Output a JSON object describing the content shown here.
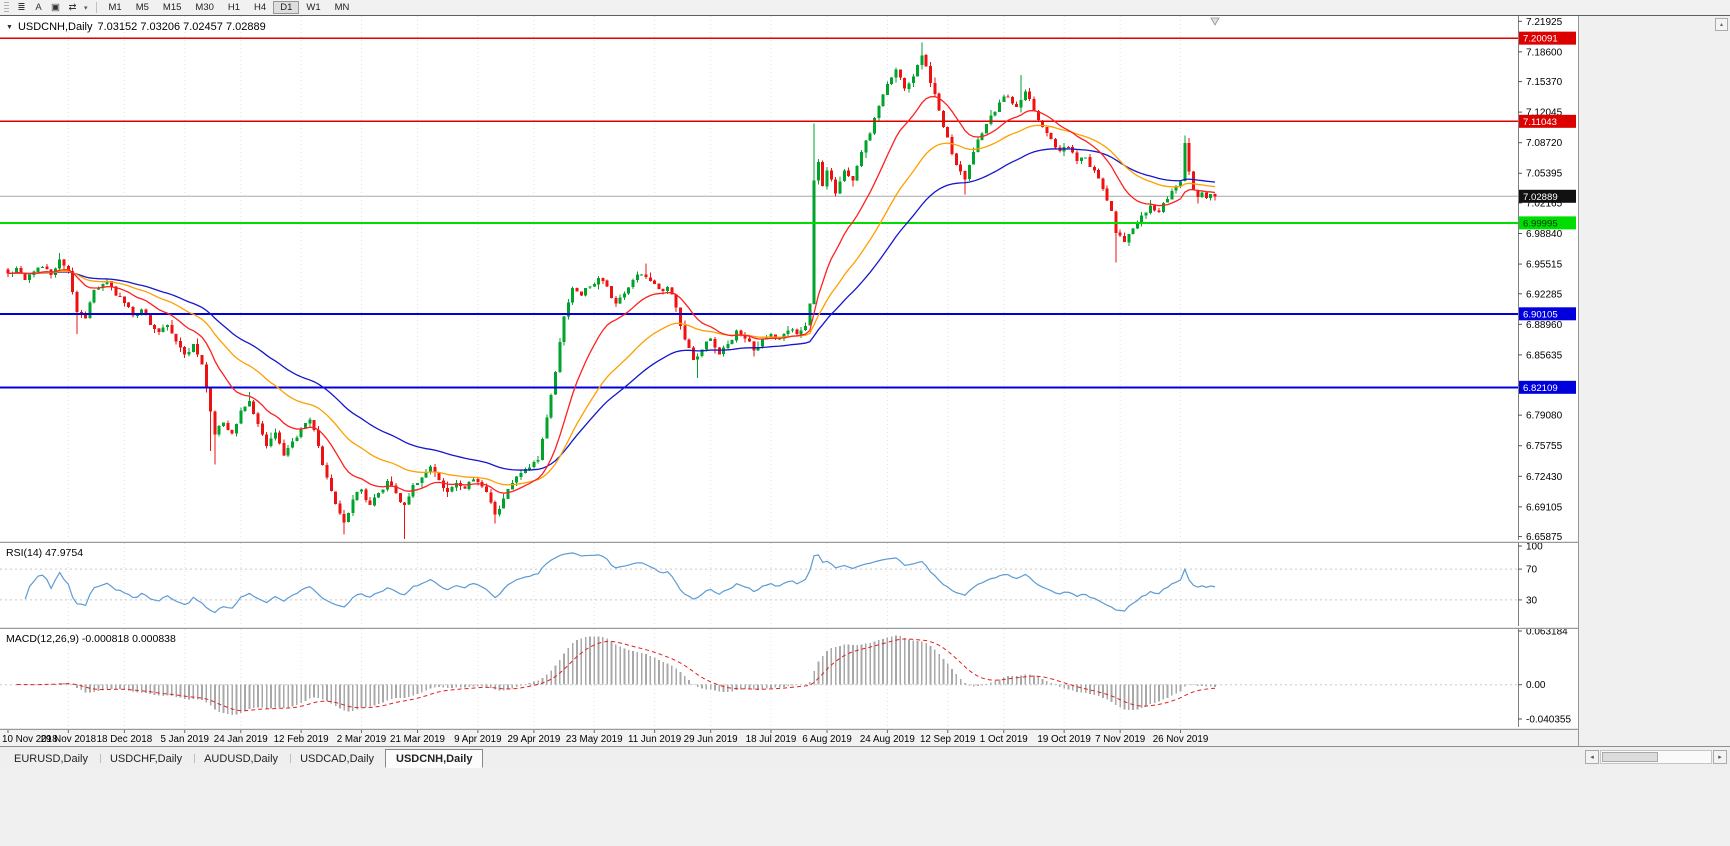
{
  "toolbar": {
    "tools": [
      {
        "name": "chart-objects-list-button",
        "glyph": "≣"
      },
      {
        "name": "text-label-tool-button",
        "glyph": "A"
      },
      {
        "name": "template-tool-button",
        "glyph": "▣"
      },
      {
        "name": "arrow-tools-button",
        "glyph": "⇄"
      }
    ],
    "arrows_dropdown_glyph": "▾",
    "timeframes": [
      "M1",
      "M5",
      "M15",
      "M30",
      "H1",
      "H4",
      "D1",
      "W1",
      "MN"
    ],
    "active_timeframe": "D1"
  },
  "chart": {
    "title_marker_glyph": "▼",
    "title": "USDCNH,Daily",
    "ohlc_text": "7.03152 7.03206 7.02457 7.02889"
  },
  "chart_data": {
    "type": "candlestick",
    "title": "USDCNH,Daily",
    "ohlc_display": {
      "open": 7.03152,
      "high": 7.03206,
      "low": 7.02457,
      "close": 7.02889
    },
    "ylim": [
      6.655,
      7.225
    ],
    "y_axis_labels": [
      "7.21925",
      "7.18600",
      "7.15370",
      "7.12045",
      "7.08720",
      "7.05395",
      "7.02165",
      "6.98840",
      "6.95515",
      "6.92285",
      "6.88960",
      "6.85635",
      "6.82310",
      "6.79080",
      "6.75755",
      "6.72430",
      "6.69105",
      "6.65875"
    ],
    "x_labels": [
      "10 Nov 2018",
      "29 Nov 2018",
      "18 Dec 2018",
      "5 Jan 2019",
      "24 Jan 2019",
      "12 Feb 2019",
      "2 Mar 2019",
      "21 Mar 2019",
      "9 Apr 2019",
      "29 Apr 2019",
      "23 May 2019",
      "11 Jun 2019",
      "29 Jun 2019",
      "18 Jul 2019",
      "6 Aug 2019",
      "24 Aug 2019",
      "12 Sep 2019",
      "1 Oct 2019",
      "19 Oct 2019",
      "7 Nov 2019",
      "26 Nov 2019"
    ],
    "candle_count": 281,
    "colors": {
      "up": "#00a32b",
      "down": "#ee1111"
    },
    "close_waypoints": [
      [
        0,
        6.945
      ],
      [
        2,
        6.951
      ],
      [
        4,
        6.938
      ],
      [
        6,
        6.947
      ],
      [
        8,
        6.952
      ],
      [
        10,
        6.943
      ],
      [
        12,
        6.96
      ],
      [
        14,
        6.948
      ],
      [
        16,
        6.903
      ],
      [
        18,
        6.896
      ],
      [
        20,
        6.927
      ],
      [
        23,
        6.937
      ],
      [
        25,
        6.921
      ],
      [
        27,
        6.913
      ],
      [
        29,
        6.899
      ],
      [
        31,
        6.906
      ],
      [
        33,
        6.889
      ],
      [
        35,
        6.881
      ],
      [
        37,
        6.889
      ],
      [
        39,
        6.871
      ],
      [
        41,
        6.857
      ],
      [
        43,
        6.868
      ],
      [
        45,
        6.846
      ],
      [
        47,
        6.795
      ],
      [
        48,
        6.77
      ],
      [
        50,
        6.783
      ],
      [
        52,
        6.771
      ],
      [
        54,
        6.796
      ],
      [
        56,
        6.806
      ],
      [
        58,
        6.781
      ],
      [
        60,
        6.757
      ],
      [
        62,
        6.772
      ],
      [
        64,
        6.747
      ],
      [
        66,
        6.762
      ],
      [
        68,
        6.776
      ],
      [
        70,
        6.786
      ],
      [
        72,
        6.757
      ],
      [
        74,
        6.723
      ],
      [
        76,
        6.694
      ],
      [
        78,
        6.674
      ],
      [
        80,
        6.699
      ],
      [
        82,
        6.71
      ],
      [
        84,
        6.693
      ],
      [
        86,
        6.706
      ],
      [
        88,
        6.719
      ],
      [
        90,
        6.706
      ],
      [
        92,
        6.693
      ],
      [
        94,
        6.715
      ],
      [
        96,
        6.723
      ],
      [
        98,
        6.735
      ],
      [
        100,
        6.72
      ],
      [
        102,
        6.707
      ],
      [
        104,
        6.717
      ],
      [
        106,
        6.711
      ],
      [
        108,
        6.721
      ],
      [
        110,
        6.713
      ],
      [
        112,
        6.696
      ],
      [
        113,
        6.683
      ],
      [
        115,
        6.7
      ],
      [
        117,
        6.717
      ],
      [
        119,
        6.728
      ],
      [
        121,
        6.734
      ],
      [
        123,
        6.742
      ],
      [
        125,
        6.788
      ],
      [
        127,
        6.838
      ],
      [
        129,
        6.898
      ],
      [
        131,
        6.929
      ],
      [
        133,
        6.921
      ],
      [
        135,
        6.931
      ],
      [
        137,
        6.94
      ],
      [
        139,
        6.931
      ],
      [
        141,
        6.912
      ],
      [
        143,
        6.923
      ],
      [
        145,
        6.938
      ],
      [
        147,
        6.944
      ],
      [
        149,
        6.937
      ],
      [
        151,
        6.928
      ],
      [
        153,
        6.93
      ],
      [
        155,
        6.908
      ],
      [
        157,
        6.873
      ],
      [
        159,
        6.851
      ],
      [
        161,
        6.862
      ],
      [
        163,
        6.874
      ],
      [
        165,
        6.857
      ],
      [
        167,
        6.868
      ],
      [
        169,
        6.883
      ],
      [
        171,
        6.874
      ],
      [
        173,
        6.861
      ],
      [
        175,
        6.873
      ],
      [
        177,
        6.879
      ],
      [
        179,
        6.874
      ],
      [
        181,
        6.883
      ],
      [
        183,
        6.879
      ],
      [
        185,
        6.888
      ],
      [
        186,
        6.912
      ],
      [
        187,
        7.046
      ],
      [
        188,
        7.066
      ],
      [
        189,
        7.04
      ],
      [
        190,
        7.057
      ],
      [
        192,
        7.032
      ],
      [
        194,
        7.057
      ],
      [
        196,
        7.046
      ],
      [
        198,
        7.077
      ],
      [
        200,
        7.097
      ],
      [
        202,
        7.127
      ],
      [
        204,
        7.151
      ],
      [
        206,
        7.167
      ],
      [
        208,
        7.146
      ],
      [
        210,
        7.159
      ],
      [
        212,
        7.182
      ],
      [
        214,
        7.152
      ],
      [
        216,
        7.122
      ],
      [
        218,
        7.093
      ],
      [
        220,
        7.063
      ],
      [
        222,
        7.047
      ],
      [
        224,
        7.077
      ],
      [
        226,
        7.097
      ],
      [
        228,
        7.117
      ],
      [
        230,
        7.131
      ],
      [
        232,
        7.137
      ],
      [
        234,
        7.126
      ],
      [
        236,
        7.143
      ],
      [
        238,
        7.122
      ],
      [
        240,
        7.104
      ],
      [
        242,
        7.091
      ],
      [
        244,
        7.078
      ],
      [
        246,
        7.082
      ],
      [
        248,
        7.067
      ],
      [
        250,
        7.071
      ],
      [
        252,
        7.057
      ],
      [
        254,
        7.037
      ],
      [
        256,
        7.013
      ],
      [
        257,
        6.989
      ],
      [
        259,
        6.979
      ],
      [
        261,
        6.994
      ],
      [
        263,
        7.008
      ],
      [
        265,
        7.019
      ],
      [
        267,
        7.012
      ],
      [
        269,
        7.026
      ],
      [
        271,
        7.039
      ],
      [
        272,
        7.045
      ],
      [
        273,
        7.087
      ],
      [
        274,
        7.056
      ],
      [
        275,
        7.036
      ],
      [
        276,
        7.028
      ],
      [
        277,
        7.033
      ],
      [
        278,
        7.027
      ],
      [
        279,
        7.0315
      ],
      [
        280,
        7.02889
      ]
    ],
    "wick_overrides": [
      {
        "i": 12,
        "high": 6.967
      },
      {
        "i": 16,
        "low": 6.879
      },
      {
        "i": 47,
        "low": 6.752
      },
      {
        "i": 48,
        "low": 6.737
      },
      {
        "i": 56,
        "high": 6.816
      },
      {
        "i": 78,
        "low": 6.661
      },
      {
        "i": 92,
        "low": 6.656
      },
      {
        "i": 113,
        "low": 6.673
      },
      {
        "i": 148,
        "high": 6.956
      },
      {
        "i": 160,
        "low": 6.831
      },
      {
        "i": 187,
        "high": 7.108
      },
      {
        "i": 212,
        "high": 7.196
      },
      {
        "i": 222,
        "low": 7.031
      },
      {
        "i": 235,
        "high": 7.161
      },
      {
        "i": 257,
        "low": 6.957
      },
      {
        "i": 273,
        "high": 7.095
      }
    ],
    "moving_averages": [
      {
        "period": 16,
        "color": "#ff2020"
      },
      {
        "period": 34,
        "color": "#ff9f00"
      },
      {
        "period": 55,
        "color": "#1616cc"
      }
    ],
    "horizontal_levels": [
      {
        "price": 7.20091,
        "label": "7.20091",
        "color": "#dd0000",
        "width": 1.6,
        "text_color": "#ffffff"
      },
      {
        "price": 7.11043,
        "label": "7.11043",
        "color": "#dd0000",
        "width": 1.6,
        "text_color": "#ffffff"
      },
      {
        "price": 6.99995,
        "label": "6.99995",
        "color": "#00dd00",
        "width": 2,
        "text_color": "#00350a"
      },
      {
        "price": 6.90105,
        "label": "6.90105",
        "color": "#0000dd",
        "width": 2,
        "text_color": "#ffffff"
      },
      {
        "price": 6.82109,
        "label": "6.82109",
        "color": "#0000dd",
        "width": 2,
        "text_color": "#ffffff"
      }
    ],
    "current_price": {
      "value": 7.02889,
      "label": "7.02889",
      "badge_color": "#111111",
      "line_color": "#a8a8a8"
    },
    "indicators": {
      "rsi": {
        "label": "RSI(14) 47.9754",
        "period": 14,
        "value": 47.9754,
        "levels": [
          100,
          70,
          30
        ],
        "line_color": "#5b9bd5"
      },
      "macd": {
        "label": "MACD(12,26,9) -0.000818 0.000838",
        "fast": 12,
        "slow": 26,
        "signal": 9,
        "value": -0.000818,
        "signal_value": 0.000838,
        "axis_labels": [
          "0.063184",
          "0.00",
          "-0.040355"
        ],
        "axis_range": [
          -0.040355,
          0.063184
        ],
        "histogram_color": "#a8a8a8",
        "signal_color": "#e02020"
      }
    }
  },
  "tabs": {
    "items": [
      "EURUSD,Daily",
      "USDCHF,Daily",
      "AUDUSD,Daily",
      "USDCAD,Daily",
      "USDCNH,Daily"
    ],
    "active": "USDCNH,Daily"
  },
  "scrollbar": {
    "left_glyph": "◂",
    "right_glyph": "▸"
  },
  "workspace": {
    "scroll_up_glyph": "▴"
  }
}
